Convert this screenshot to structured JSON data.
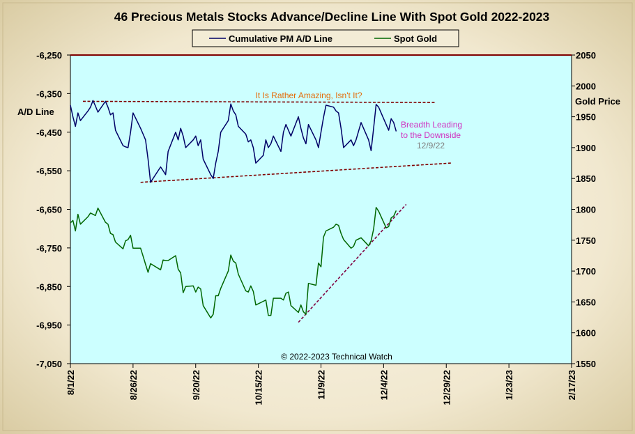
{
  "chart_data": {
    "type": "line",
    "title": "46 Precious Metals Stocks Advance/Decline  Line With Spot Gold 2022-2023",
    "left_axis": {
      "label": "A/D Line",
      "range": [
        -7050,
        -6250
      ],
      "ticks": [
        "-6,250",
        "-6,350",
        "-6,450",
        "-6,550",
        "-6,650",
        "-6,750",
        "-6,850",
        "-6,950",
        "-7,050"
      ],
      "tick_values": [
        -6250,
        -6350,
        -6450,
        -6550,
        -6650,
        -6750,
        -6850,
        -6950,
        -7050
      ]
    },
    "right_axis": {
      "label": "Gold Price",
      "range": [
        1550,
        2050
      ],
      "ticks": [
        "2050",
        "2000",
        "1950",
        "1900",
        "1850",
        "1800",
        "1750",
        "1700",
        "1650",
        "1600",
        "1550"
      ],
      "tick_values": [
        2050,
        2000,
        1950,
        1900,
        1850,
        1800,
        1750,
        1700,
        1650,
        1600,
        1550
      ]
    },
    "x_axis": {
      "start": "2022-08-01",
      "end": "2023-02-17",
      "ticks": [
        "8/1/22",
        "8/26/22",
        "9/20/22",
        "10/15/22",
        "11/9/22",
        "12/4/22",
        "12/29/22",
        "1/23/23",
        "2/17/23"
      ]
    },
    "legend": {
      "placement": "top-center",
      "entries": [
        "Cumulative PM A/D Line",
        "Spot Gold"
      ]
    },
    "series": [
      {
        "name": "Cumulative PM A/D Line",
        "axis": "left",
        "color": "#000066",
        "points": [
          [
            "2022-08-01",
            -6380
          ],
          [
            "2022-08-02",
            -6410
          ],
          [
            "2022-08-03",
            -6435
          ],
          [
            "2022-08-04",
            -6400
          ],
          [
            "2022-08-05",
            -6420
          ],
          [
            "2022-08-08",
            -6395
          ],
          [
            "2022-08-09",
            -6385
          ],
          [
            "2022-08-10",
            -6368
          ],
          [
            "2022-08-11",
            -6382
          ],
          [
            "2022-08-12",
            -6398
          ],
          [
            "2022-08-15",
            -6370
          ],
          [
            "2022-08-16",
            -6385
          ],
          [
            "2022-08-17",
            -6405
          ],
          [
            "2022-08-18",
            -6400
          ],
          [
            "2022-08-19",
            -6445
          ],
          [
            "2022-08-22",
            -6485
          ],
          [
            "2022-08-23",
            -6488
          ],
          [
            "2022-08-24",
            -6490
          ],
          [
            "2022-08-25",
            -6450
          ],
          [
            "2022-08-26",
            -6400
          ],
          [
            "2022-08-29",
            -6440
          ],
          [
            "2022-08-30",
            -6455
          ],
          [
            "2022-08-31",
            -6470
          ],
          [
            "2022-09-01",
            -6520
          ],
          [
            "2022-09-02",
            -6580
          ],
          [
            "2022-09-06",
            -6540
          ],
          [
            "2022-09-07",
            -6550
          ],
          [
            "2022-09-08",
            -6560
          ],
          [
            "2022-09-09",
            -6500
          ],
          [
            "2022-09-12",
            -6450
          ],
          [
            "2022-09-13",
            -6470
          ],
          [
            "2022-09-14",
            -6440
          ],
          [
            "2022-09-15",
            -6460
          ],
          [
            "2022-09-16",
            -6490
          ],
          [
            "2022-09-19",
            -6470
          ],
          [
            "2022-09-20",
            -6460
          ],
          [
            "2022-09-21",
            -6485
          ],
          [
            "2022-09-22",
            -6470
          ],
          [
            "2022-09-23",
            -6520
          ],
          [
            "2022-09-26",
            -6560
          ],
          [
            "2022-09-27",
            -6570
          ],
          [
            "2022-09-28",
            -6530
          ],
          [
            "2022-09-29",
            -6500
          ],
          [
            "2022-09-30",
            -6450
          ],
          [
            "2022-10-03",
            -6420
          ],
          [
            "2022-10-04",
            -6377
          ],
          [
            "2022-10-05",
            -6395
          ],
          [
            "2022-10-06",
            -6405
          ],
          [
            "2022-10-07",
            -6435
          ],
          [
            "2022-10-10",
            -6455
          ],
          [
            "2022-10-11",
            -6475
          ],
          [
            "2022-10-12",
            -6470
          ],
          [
            "2022-10-13",
            -6490
          ],
          [
            "2022-10-14",
            -6530
          ],
          [
            "2022-10-17",
            -6510
          ],
          [
            "2022-10-18",
            -6470
          ],
          [
            "2022-10-19",
            -6490
          ],
          [
            "2022-10-20",
            -6480
          ],
          [
            "2022-10-21",
            -6460
          ],
          [
            "2022-10-24",
            -6500
          ],
          [
            "2022-10-25",
            -6450
          ],
          [
            "2022-10-26",
            -6430
          ],
          [
            "2022-10-27",
            -6445
          ],
          [
            "2022-10-28",
            -6460
          ],
          [
            "2022-10-31",
            -6410
          ],
          [
            "2022-11-01",
            -6440
          ],
          [
            "2022-11-02",
            -6465
          ],
          [
            "2022-11-03",
            -6480
          ],
          [
            "2022-11-04",
            -6430
          ],
          [
            "2022-11-07",
            -6470
          ],
          [
            "2022-11-08",
            -6490
          ],
          [
            "2022-11-09",
            -6450
          ],
          [
            "2022-11-10",
            -6412
          ],
          [
            "2022-11-11",
            -6380
          ],
          [
            "2022-11-14",
            -6385
          ],
          [
            "2022-11-15",
            -6395
          ],
          [
            "2022-11-16",
            -6400
          ],
          [
            "2022-11-17",
            -6440
          ],
          [
            "2022-11-18",
            -6490
          ],
          [
            "2022-11-21",
            -6470
          ],
          [
            "2022-11-22",
            -6485
          ],
          [
            "2022-11-23",
            -6470
          ],
          [
            "2022-11-25",
            -6425
          ],
          [
            "2022-11-28",
            -6470
          ],
          [
            "2022-11-29",
            -6498
          ],
          [
            "2022-11-30",
            -6440
          ],
          [
            "2022-12-01",
            -6378
          ],
          [
            "2022-12-02",
            -6385
          ],
          [
            "2022-12-05",
            -6430
          ],
          [
            "2022-12-06",
            -6445
          ],
          [
            "2022-12-07",
            -6415
          ],
          [
            "2022-12-08",
            -6425
          ],
          [
            "2022-12-09",
            -6448
          ]
        ]
      },
      {
        "name": "Spot Gold",
        "axis": "right",
        "color": "#006600",
        "points": [
          [
            "2022-08-01",
            1778
          ],
          [
            "2022-08-02",
            1782
          ],
          [
            "2022-08-03",
            1765
          ],
          [
            "2022-08-04",
            1792
          ],
          [
            "2022-08-05",
            1776
          ],
          [
            "2022-08-08",
            1788
          ],
          [
            "2022-08-09",
            1794
          ],
          [
            "2022-08-10",
            1792
          ],
          [
            "2022-08-11",
            1790
          ],
          [
            "2022-08-12",
            1802
          ],
          [
            "2022-08-15",
            1779
          ],
          [
            "2022-08-16",
            1776
          ],
          [
            "2022-08-17",
            1761
          ],
          [
            "2022-08-18",
            1759
          ],
          [
            "2022-08-19",
            1747
          ],
          [
            "2022-08-22",
            1736
          ],
          [
            "2022-08-23",
            1749
          ],
          [
            "2022-08-24",
            1751
          ],
          [
            "2022-08-25",
            1758
          ],
          [
            "2022-08-26",
            1737
          ],
          [
            "2022-08-29",
            1737
          ],
          [
            "2022-08-30",
            1724
          ],
          [
            "2022-08-31",
            1711
          ],
          [
            "2022-09-01",
            1698
          ],
          [
            "2022-09-02",
            1712
          ],
          [
            "2022-09-06",
            1702
          ],
          [
            "2022-09-07",
            1718
          ],
          [
            "2022-09-08",
            1717
          ],
          [
            "2022-09-09",
            1717
          ],
          [
            "2022-09-12",
            1725
          ],
          [
            "2022-09-13",
            1703
          ],
          [
            "2022-09-14",
            1697
          ],
          [
            "2022-09-15",
            1665
          ],
          [
            "2022-09-16",
            1675
          ],
          [
            "2022-09-19",
            1676
          ],
          [
            "2022-09-20",
            1666
          ],
          [
            "2022-09-21",
            1674
          ],
          [
            "2022-09-22",
            1671
          ],
          [
            "2022-09-23",
            1644
          ],
          [
            "2022-09-26",
            1624
          ],
          [
            "2022-09-27",
            1630
          ],
          [
            "2022-09-28",
            1660
          ],
          [
            "2022-09-29",
            1660
          ],
          [
            "2022-09-30",
            1672
          ],
          [
            "2022-10-03",
            1700
          ],
          [
            "2022-10-04",
            1726
          ],
          [
            "2022-10-05",
            1716
          ],
          [
            "2022-10-06",
            1713
          ],
          [
            "2022-10-07",
            1695
          ],
          [
            "2022-10-10",
            1668
          ],
          [
            "2022-10-11",
            1666
          ],
          [
            "2022-10-12",
            1676
          ],
          [
            "2022-10-13",
            1667
          ],
          [
            "2022-10-14",
            1645
          ],
          [
            "2022-10-17",
            1651
          ],
          [
            "2022-10-18",
            1653
          ],
          [
            "2022-10-19",
            1628
          ],
          [
            "2022-10-20",
            1628
          ],
          [
            "2022-10-21",
            1656
          ],
          [
            "2022-10-24",
            1656
          ],
          [
            "2022-10-25",
            1653
          ],
          [
            "2022-10-26",
            1664
          ],
          [
            "2022-10-27",
            1666
          ],
          [
            "2022-10-28",
            1644
          ],
          [
            "2022-10-31",
            1633
          ],
          [
            "2022-11-01",
            1645
          ],
          [
            "2022-11-02",
            1634
          ],
          [
            "2022-11-03",
            1630
          ],
          [
            "2022-11-04",
            1680
          ],
          [
            "2022-11-07",
            1677
          ],
          [
            "2022-11-08",
            1713
          ],
          [
            "2022-11-09",
            1707
          ],
          [
            "2022-11-10",
            1755
          ],
          [
            "2022-11-11",
            1765
          ],
          [
            "2022-11-14",
            1771
          ],
          [
            "2022-11-15",
            1776
          ],
          [
            "2022-11-16",
            1774
          ],
          [
            "2022-11-17",
            1761
          ],
          [
            "2022-11-18",
            1751
          ],
          [
            "2022-11-21",
            1737
          ],
          [
            "2022-11-22",
            1740
          ],
          [
            "2022-11-23",
            1750
          ],
          [
            "2022-11-25",
            1754
          ],
          [
            "2022-11-28",
            1741
          ],
          [
            "2022-11-29",
            1749
          ],
          [
            "2022-11-30",
            1768
          ],
          [
            "2022-12-01",
            1803
          ],
          [
            "2022-12-02",
            1797
          ],
          [
            "2022-12-05",
            1770
          ],
          [
            "2022-12-06",
            1772
          ],
          [
            "2022-12-07",
            1786
          ],
          [
            "2022-12-08",
            1789
          ],
          [
            "2022-12-09",
            1798
          ]
        ]
      }
    ],
    "trendlines": [
      {
        "axis": "left",
        "color": "#800000",
        "from": [
          "2022-08-06",
          -6370
        ],
        "to": [
          "2022-12-25",
          -6373
        ]
      },
      {
        "axis": "left",
        "color": "#800000",
        "from": [
          "2022-08-29",
          -6580
        ],
        "to": [
          "2022-12-31",
          -6530
        ]
      },
      {
        "axis": "right",
        "color": "#800040",
        "from": [
          "2022-10-31",
          1617
        ],
        "to": [
          "2022-12-13",
          1808
        ]
      }
    ],
    "annotations": [
      {
        "text": "It Is Rather  Amazing, Isn't It?",
        "color": "#e46c0a"
      },
      {
        "text": "Breadth Leading",
        "color": "#d030c0"
      },
      {
        "text": "to the Downside",
        "color": "#d030c0"
      },
      {
        "text": "12/9/22",
        "color": "#808080"
      },
      {
        "text": "© 2022-2023  Technical  Watch",
        "color": "#000000"
      }
    ],
    "grid": false,
    "plot_background": "#ccffff"
  }
}
